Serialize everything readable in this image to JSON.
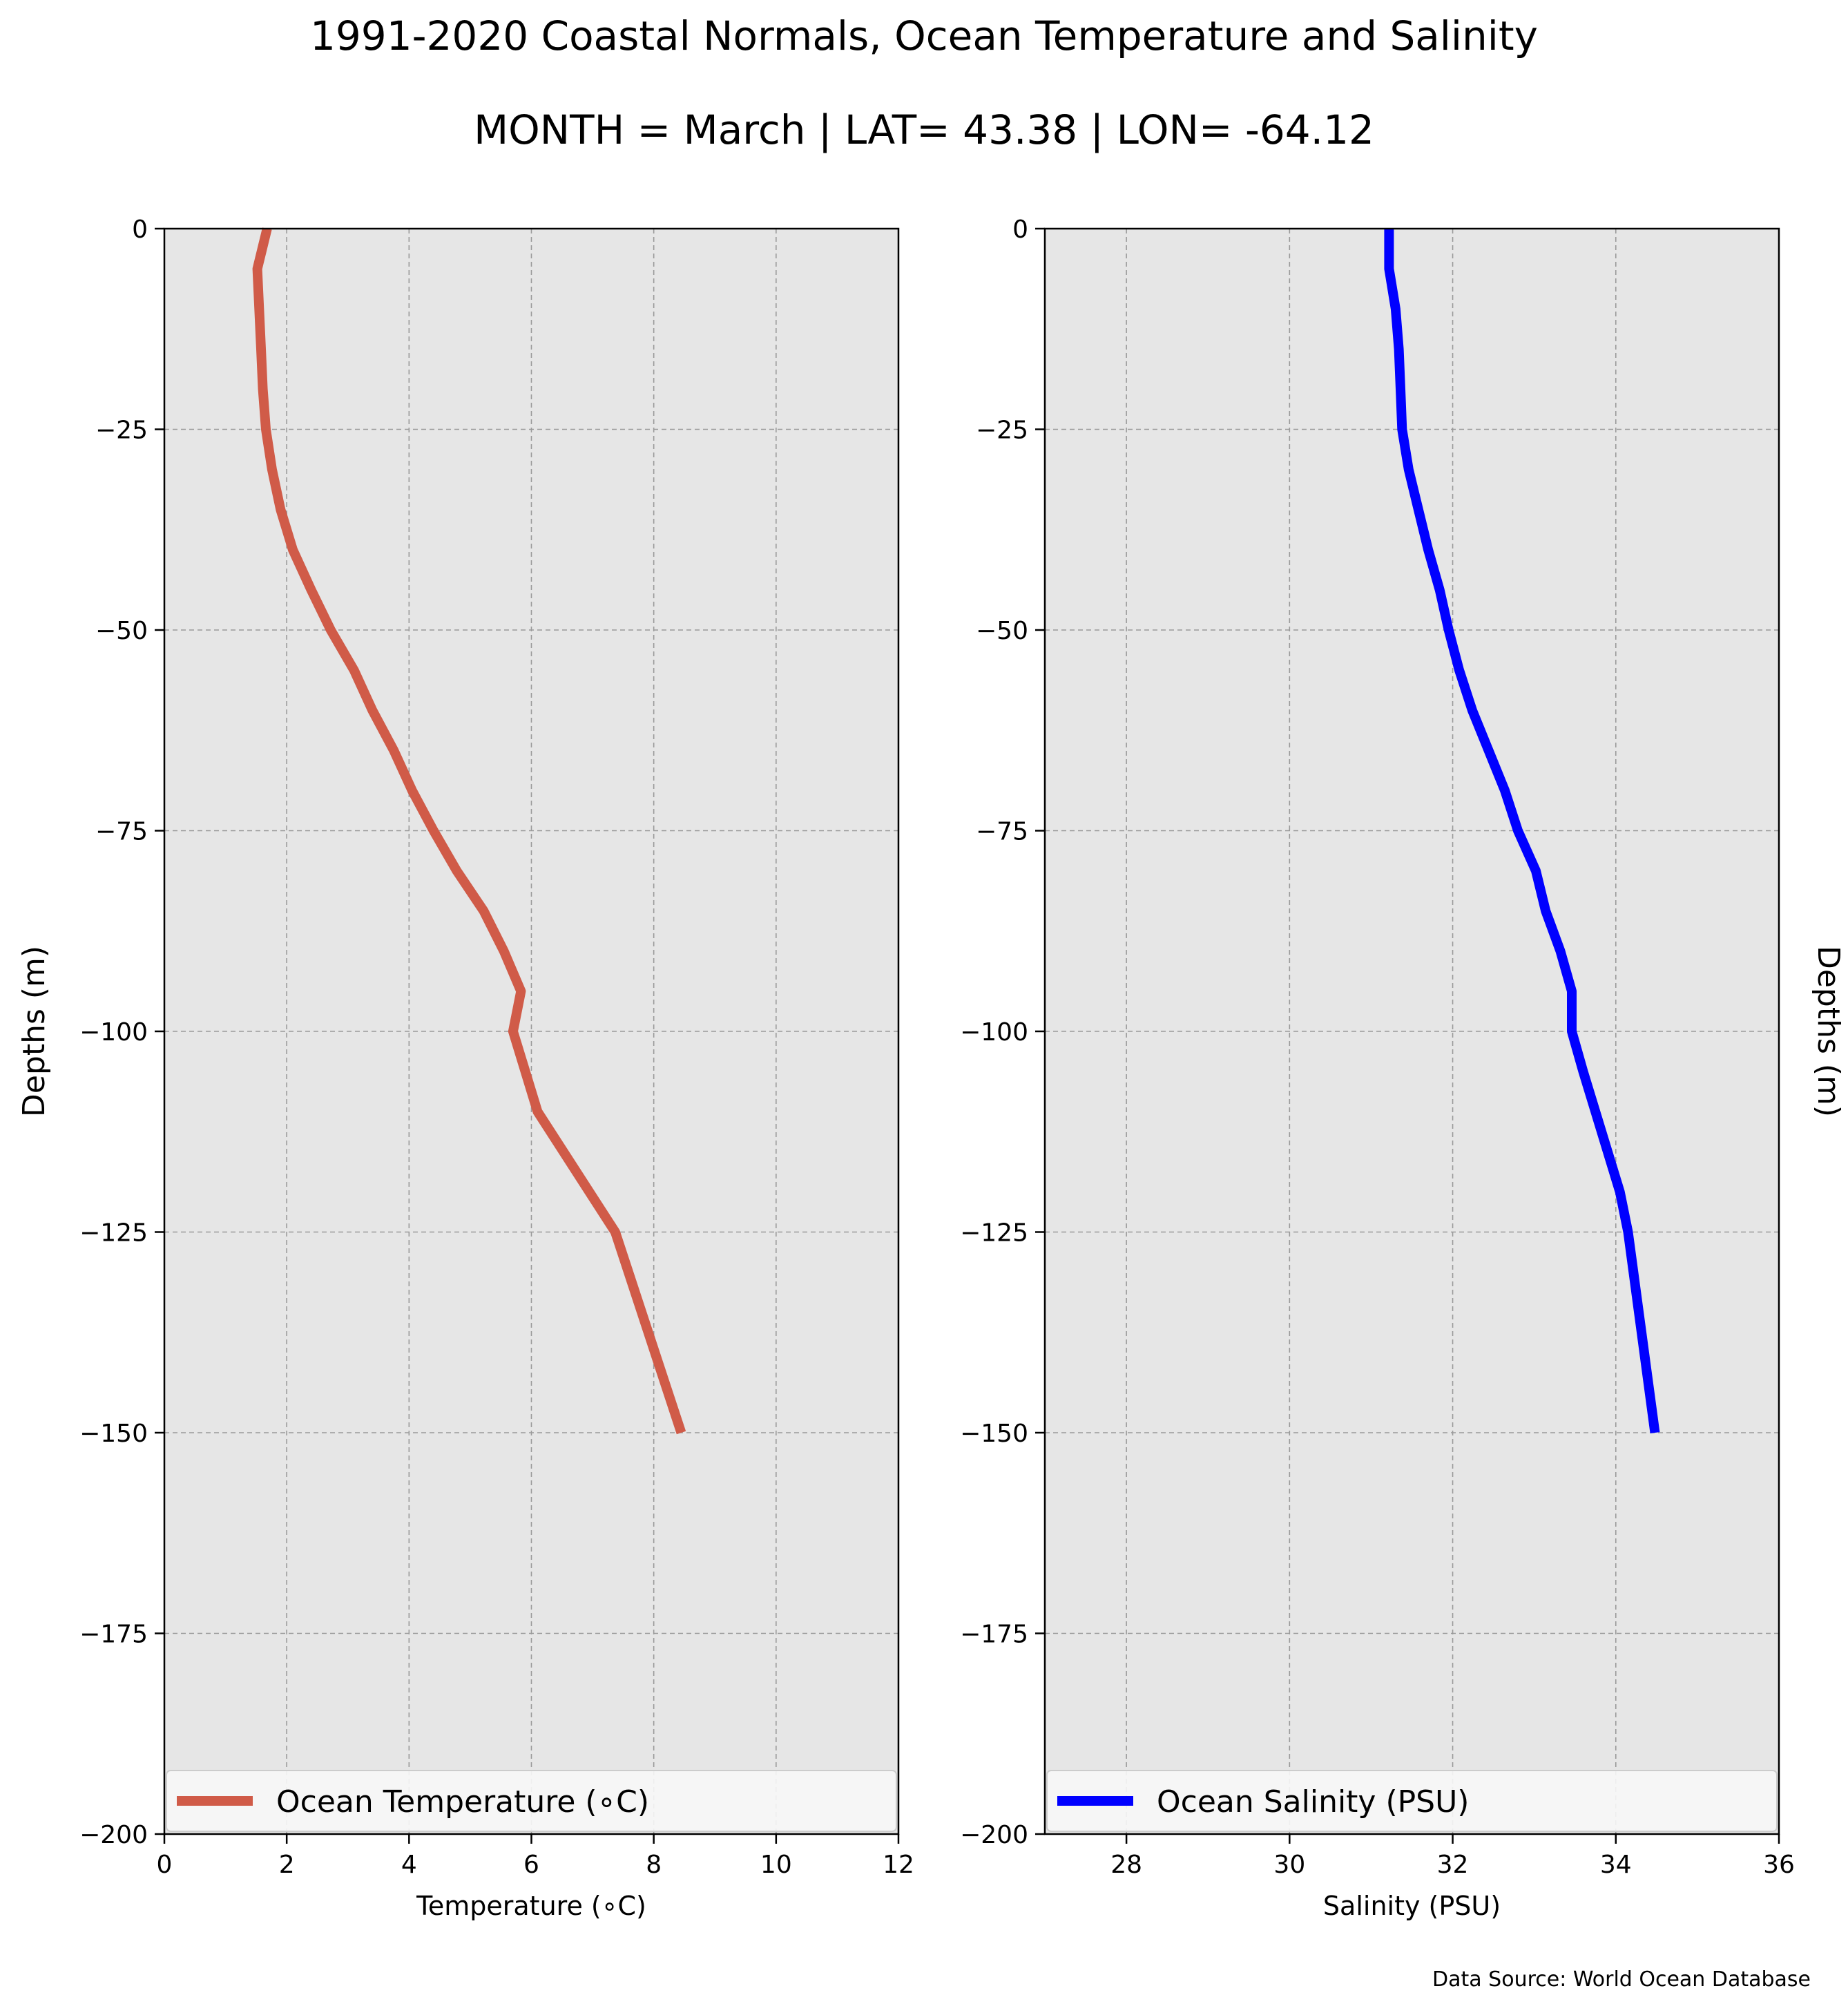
{
  "figure": {
    "title": "1991-2020 Coastal Normals, Ocean Temperature and Salinity",
    "subtitle": "MONTH = March | LAT= 43.38 | LON= -64.12",
    "source_note": "Data Source: World Ocean Database"
  },
  "chart_data": [
    {
      "type": "line",
      "xlabel": "Temperature ($^\\circ$C)",
      "xlabel_display": "Temperature (∘C)",
      "ylabel": "Depths (m)",
      "xlim": [
        0,
        12
      ],
      "ylim": [
        -200,
        0
      ],
      "xticks": [
        "0",
        "2",
        "4",
        "6",
        "8",
        "10",
        "12"
      ],
      "yticks": [
        "0",
        "−25",
        "−50",
        "−75",
        "−100",
        "−125",
        "−150",
        "−175",
        "−200"
      ],
      "grid": true,
      "legend_location": "lower center",
      "colors": {
        "line": "#d05b48",
        "background": "#e6e6e6",
        "grid": "#9a9a9a"
      },
      "series": [
        {
          "name": "Ocean Temperature (∘C)",
          "points": [
            {
              "x": 1.68,
              "y": 0
            },
            {
              "x": 1.52,
              "y": -5
            },
            {
              "x": 1.55,
              "y": -10
            },
            {
              "x": 1.58,
              "y": -15
            },
            {
              "x": 1.61,
              "y": -20
            },
            {
              "x": 1.66,
              "y": -25
            },
            {
              "x": 1.76,
              "y": -30
            },
            {
              "x": 1.9,
              "y": -35
            },
            {
              "x": 2.1,
              "y": -40
            },
            {
              "x": 2.4,
              "y": -45
            },
            {
              "x": 2.72,
              "y": -50
            },
            {
              "x": 3.1,
              "y": -55
            },
            {
              "x": 3.4,
              "y": -60
            },
            {
              "x": 3.75,
              "y": -65
            },
            {
              "x": 4.05,
              "y": -70
            },
            {
              "x": 4.4,
              "y": -75
            },
            {
              "x": 4.78,
              "y": -80
            },
            {
              "x": 5.22,
              "y": -85
            },
            {
              "x": 5.55,
              "y": -90
            },
            {
              "x": 5.83,
              "y": -95
            },
            {
              "x": 5.7,
              "y": -100
            },
            {
              "x": 6.1,
              "y": -110
            },
            {
              "x": 7.37,
              "y": -125
            },
            {
              "x": 8.45,
              "y": -150
            }
          ]
        }
      ]
    },
    {
      "type": "line",
      "xlabel": "Salinity (PSU)",
      "ylabel": "Depths (m)",
      "xlim": [
        27,
        36
      ],
      "ylim": [
        -200,
        0
      ],
      "xticks": [
        "28",
        "30",
        "32",
        "34",
        "36"
      ],
      "yticks": [
        "0",
        "−25",
        "−50",
        "−75",
        "−100",
        "−125",
        "−150",
        "−175",
        "−200"
      ],
      "grid": true,
      "legend_location": "lower center",
      "colors": {
        "line": "#0000ff",
        "background": "#e6e6e6",
        "grid": "#9a9a9a"
      },
      "series": [
        {
          "name": "Ocean Salinity (PSU)",
          "points": [
            {
              "x": 31.22,
              "y": 0
            },
            {
              "x": 31.22,
              "y": -5
            },
            {
              "x": 31.3,
              "y": -10
            },
            {
              "x": 31.34,
              "y": -15
            },
            {
              "x": 31.36,
              "y": -20
            },
            {
              "x": 31.38,
              "y": -25
            },
            {
              "x": 31.46,
              "y": -30
            },
            {
              "x": 31.58,
              "y": -35
            },
            {
              "x": 31.7,
              "y": -40
            },
            {
              "x": 31.84,
              "y": -45
            },
            {
              "x": 31.95,
              "y": -50
            },
            {
              "x": 32.08,
              "y": -55
            },
            {
              "x": 32.24,
              "y": -60
            },
            {
              "x": 32.44,
              "y": -65
            },
            {
              "x": 32.64,
              "y": -70
            },
            {
              "x": 32.8,
              "y": -75
            },
            {
              "x": 33.02,
              "y": -80
            },
            {
              "x": 33.14,
              "y": -85
            },
            {
              "x": 33.32,
              "y": -90
            },
            {
              "x": 33.46,
              "y": -95
            },
            {
              "x": 33.46,
              "y": -100
            },
            {
              "x": 33.6,
              "y": -105
            },
            {
              "x": 34.05,
              "y": -120
            },
            {
              "x": 34.15,
              "y": -125
            },
            {
              "x": 34.48,
              "y": -150
            }
          ]
        }
      ]
    }
  ]
}
